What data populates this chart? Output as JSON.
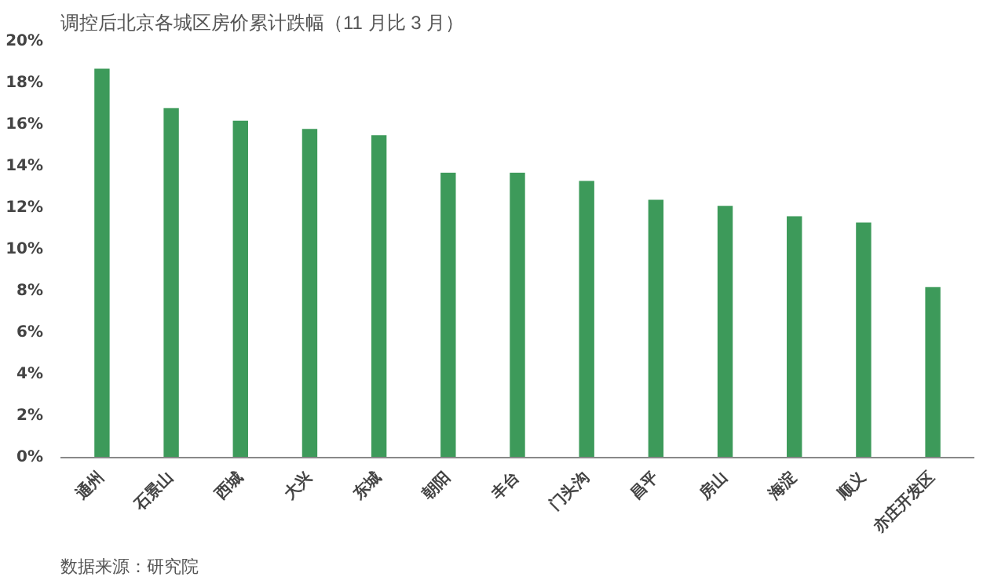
{
  "chart_data": {
    "type": "bar",
    "title": "调控后北京各城区房价累计跌幅（11 月比 3 月）",
    "categories": [
      "通州",
      "石景山",
      "西城",
      "大兴",
      "东城",
      "朝阳",
      "丰台",
      "门头沟",
      "昌平",
      "房山",
      "海淀",
      "顺义",
      "亦庄开发区"
    ],
    "values": [
      18.7,
      16.8,
      16.2,
      15.8,
      15.5,
      13.7,
      13.7,
      13.3,
      12.4,
      12.1,
      11.6,
      11.3,
      8.2
    ],
    "color": "#3d9a5a",
    "ylim": [
      0,
      20
    ],
    "yticks": [
      {
        "value": 0,
        "label": "0%"
      },
      {
        "value": 2,
        "label": "2%"
      },
      {
        "value": 4,
        "label": "4%"
      },
      {
        "value": 6,
        "label": "6%"
      },
      {
        "value": 8,
        "label": "8%"
      },
      {
        "value": 10,
        "label": "10%"
      },
      {
        "value": 12,
        "label": "12%"
      },
      {
        "value": 14,
        "label": "14%"
      },
      {
        "value": 16,
        "label": "16%"
      },
      {
        "value": 18,
        "label": "18%"
      },
      {
        "value": 20,
        "label": "20%"
      }
    ],
    "grid": false,
    "annotations": [
      "数据来源：研究院"
    ]
  }
}
